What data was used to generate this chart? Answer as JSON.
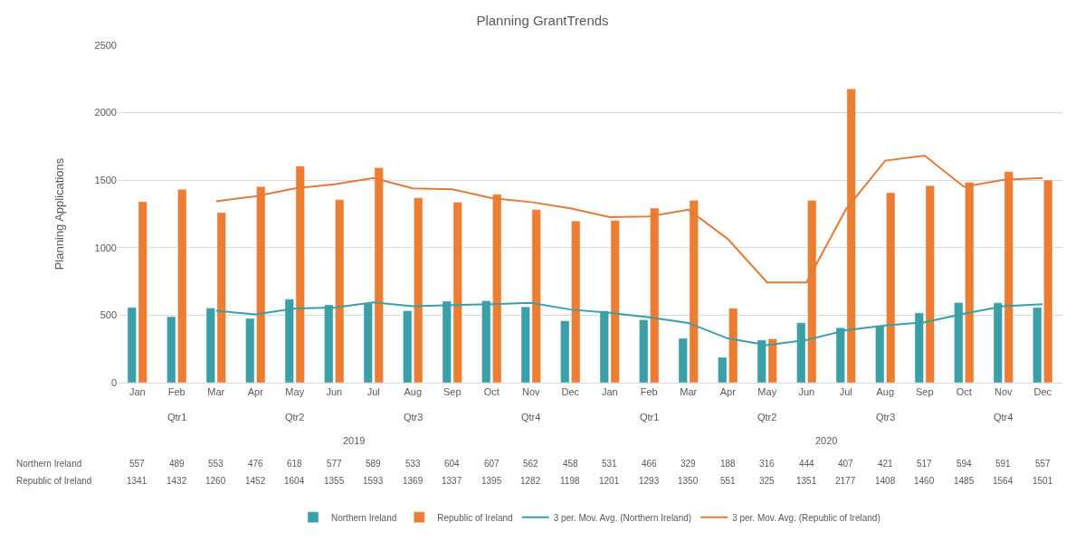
{
  "chart_data": {
    "type": "bar",
    "title": "Planning GrantTrends",
    "ylabel": "Planning Applications",
    "categories": [
      "Jan",
      "Feb",
      "Mar",
      "Apr",
      "May",
      "Jun",
      "Jul",
      "Aug",
      "Sep",
      "Oct",
      "Nov",
      "Dec",
      "Jan",
      "Feb",
      "Mar",
      "Apr",
      "May",
      "Jun",
      "Jul",
      "Aug",
      "Sep",
      "Oct",
      "Nov",
      "Dec"
    ],
    "annotations": [
      "Qtr1",
      "Qtr2",
      "Qtr3",
      "Qtr4",
      "Qtr1",
      "Qtr2",
      "Qtr3",
      "Qtr4",
      "2019",
      "2020"
    ],
    "series": [
      {
        "name": "Northern Ireland",
        "color": "#3a9fa6",
        "values": [
          557,
          489,
          553,
          476,
          618,
          577,
          589,
          533,
          604,
          607,
          562,
          458,
          531,
          466,
          329,
          188,
          316,
          444,
          407,
          421,
          517,
          594,
          591,
          557
        ],
        "value_labels": [
          "557",
          "489",
          "553",
          "476",
          "618",
          "577",
          "589",
          "533",
          "604",
          "607",
          "562",
          "458",
          "531",
          "466",
          "329",
          "188",
          "316",
          "444",
          "407",
          "421",
          "517",
          "594",
          "591",
          "557"
        ]
      },
      {
        "name": "Republic of Ireland",
        "color": "#ed7d31",
        "values": [
          1341,
          1432,
          1260,
          1452,
          1604,
          1355,
          1593,
          1369,
          1337,
          1395,
          1282,
          1198,
          1201,
          1293,
          1350,
          551,
          325,
          1351,
          2177,
          1408,
          1460,
          1485,
          1564,
          1501
        ],
        "value_labels": [
          "1341",
          "1432",
          "1260",
          "1452",
          "1604",
          "1355",
          "1593",
          "1369",
          "1337",
          "1395",
          "1282",
          "1198",
          "1201",
          "1293",
          "1350",
          "551",
          "325",
          "1351",
          "2177",
          "1408",
          "1460",
          "1485",
          "1564",
          "1501"
        ]
      },
      {
        "name": "3 per. Mov. Avg. (Northern Ireland)",
        "type": "line",
        "color": "#3a9fa6",
        "values": [
          null,
          null,
          533,
          506,
          549,
          557,
          595,
          566,
          575,
          581,
          591,
          542,
          517,
          485,
          442,
          328,
          278,
          316,
          389,
          424,
          448,
          511,
          567,
          581
        ]
      },
      {
        "name": "3 per. Mov. Avg. (Republic of Ireland)",
        "type": "line",
        "color": "#e07b39",
        "values": [
          null,
          null,
          1344,
          1381,
          1439,
          1470,
          1517,
          1439,
          1433,
          1367,
          1338,
          1292,
          1227,
          1231,
          1281,
          1065,
          742,
          742,
          1284,
          1645,
          1682,
          1451,
          1503,
          1517
        ]
      }
    ],
    "ylim": [
      0,
      2500
    ],
    "yticks": [
      0,
      500,
      1000,
      1500,
      2000,
      2500
    ],
    "grid": "y",
    "legend": "bottom",
    "line_style": "solid",
    "marker": "none"
  }
}
